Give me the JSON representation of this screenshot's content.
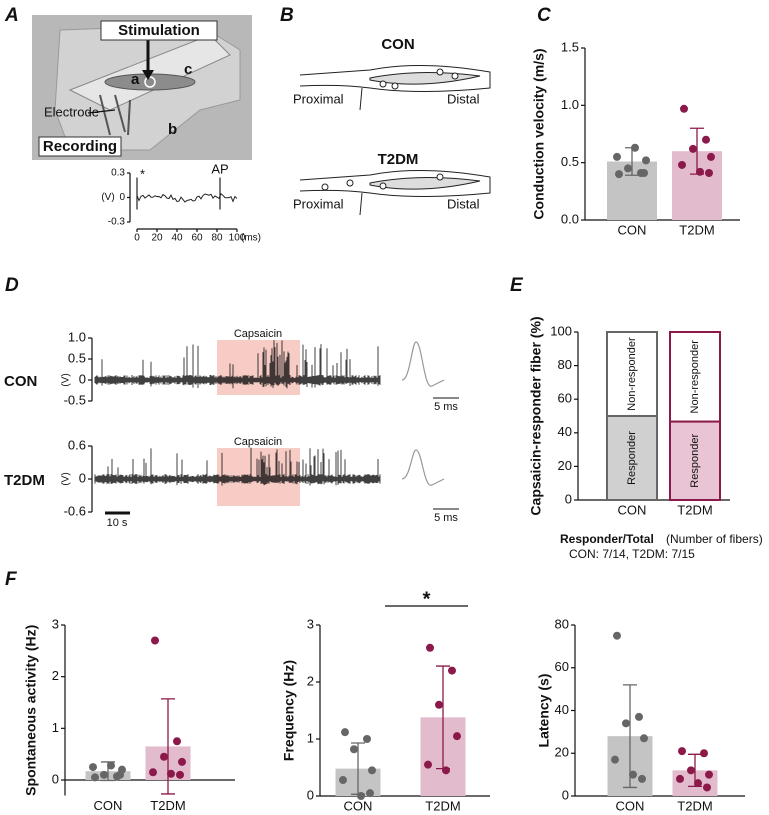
{
  "panel_a": {
    "stimulation": "Stimulation",
    "recording": "Recording",
    "electrode": "Electrode",
    "site_a": "a",
    "site_b": "b",
    "site_c": "c"
  },
  "panel_b": {
    "letter": "B",
    "con": "CON",
    "t2dm": "T2DM",
    "proximal": "Proximal",
    "distal": "Distal"
  },
  "chart_data": [
    {
      "type": "trace",
      "panel": "A",
      "ylabel": "(V)",
      "xlabel": "(ms)",
      "xlim": [
        0,
        100
      ],
      "ylim": [
        -0.3,
        0.3
      ],
      "xticks": [
        0,
        20,
        40,
        60,
        80,
        100
      ],
      "yticks": [
        0.3,
        0,
        -0.3
      ],
      "annotations": [
        {
          "text": "*",
          "x": 0
        },
        {
          "text": "AP",
          "x": 83
        }
      ]
    },
    {
      "type": "bar",
      "panel": "C",
      "ylabel": "Conduction velocity (m/s)",
      "categories": [
        "CON",
        "T2DM"
      ],
      "values": [
        0.51,
        0.6
      ],
      "errors": [
        0.12,
        0.2
      ],
      "points": [
        [
          0.4,
          0.41,
          0.45,
          0.52,
          0.55,
          0.63,
          0.41
        ],
        [
          0.97,
          0.7,
          0.62,
          0.55,
          0.48,
          0.42,
          0.41
        ]
      ],
      "bar_colors": [
        "#c4c4c4",
        "#e2bccd"
      ],
      "point_colors": [
        "#666666",
        "#8b1a4a"
      ],
      "ylim": [
        0,
        1.5
      ],
      "yticks": [
        {
          "value": 0,
          "label": "0.0"
        },
        0.5,
        {
          "value": 1,
          "label": "1.0"
        },
        1.5
      ]
    },
    {
      "type": "recording",
      "panel": "D",
      "label": "CON",
      "ylabel": "(V)",
      "stimulus": "Capsaicin",
      "scale_label": "5 ms",
      "ylim": [
        -0.5,
        1
      ],
      "yticks": [
        {
          "value": 1,
          "label": "1.0"
        },
        0.5,
        0,
        -0.5
      ]
    },
    {
      "type": "recording",
      "label": "T2DM",
      "ylabel": "(V)",
      "stimulus": "Capsaicin",
      "scale_label": "5 ms",
      "time_scale_label": "10 s",
      "ylim": [
        -0.6,
        0.6
      ],
      "yticks": [
        0.6,
        0,
        -0.6
      ]
    },
    {
      "type": "stacked_bar",
      "panel": "E",
      "ylabel": "Capsaicin-responder fiber (%)",
      "categories": [
        "CON",
        "T2DM"
      ],
      "series": [
        {
          "name": "Responder",
          "values": [
            50,
            46.7
          ],
          "colors": [
            "#d0d0d0",
            "#e8c4d4"
          ]
        },
        {
          "name": "Non-responder",
          "values": [
            50,
            53.3
          ],
          "colors": [
            "#ffffff",
            "#ffffff"
          ]
        }
      ],
      "edge_colors": [
        "#666666",
        "#8b1a4a"
      ],
      "ylim": [
        0,
        100
      ],
      "yticks": [
        0,
        20,
        40,
        60,
        80,
        100
      ],
      "note_title": "Responder/Total",
      "note_unit": "(Number of fibers)",
      "note": "CON: 7/14, T2DM: 7/15"
    },
    {
      "type": "bar",
      "panel": "F",
      "ylabel": "Spontaneous activity (Hz)",
      "categories": [
        "CON",
        "T2DM"
      ],
      "values": [
        0.17,
        0.65
      ],
      "errors": [
        0.18,
        0.92
      ],
      "points": [
        [
          0.05,
          0.07,
          0.1,
          0.2,
          0.25,
          0.28,
          0.1
        ],
        [
          2.7,
          0.75,
          0.45,
          0.35,
          0.15,
          0.12,
          0.1
        ]
      ],
      "bar_colors": [
        "#c4c4c4",
        "#e2bccd"
      ],
      "point_colors": [
        "#666666",
        "#8b1a4a"
      ],
      "ylim": [
        -0.3,
        3
      ],
      "yticks": [
        0,
        1,
        2,
        3
      ]
    },
    {
      "type": "bar",
      "ylabel": "Frequency (Hz)",
      "categories": [
        "CON",
        "T2DM"
      ],
      "values": [
        0.48,
        1.38
      ],
      "errors": [
        0.45,
        0.9
      ],
      "points": [
        [
          1.12,
          1.0,
          0.82,
          0.45,
          0.28,
          0.0,
          0.05
        ],
        [
          2.6,
          2.2,
          1.6,
          1.05,
          0.55,
          0.45
        ]
      ],
      "bar_colors": [
        "#c4c4c4",
        "#e2bccd"
      ],
      "point_colors": [
        "#666666",
        "#8b1a4a"
      ],
      "ylim": [
        0,
        3
      ],
      "yticks": [
        0,
        1,
        2,
        3
      ],
      "significance": "*"
    },
    {
      "type": "bar",
      "ylabel": "Latency (s)",
      "categories": [
        "CON",
        "T2DM"
      ],
      "values": [
        28,
        12
      ],
      "errors": [
        24,
        7.5
      ],
      "points": [
        [
          75,
          37,
          34,
          27,
          17,
          10,
          8
        ],
        [
          21,
          20,
          12,
          10,
          8,
          6,
          4
        ]
      ],
      "bar_colors": [
        "#c4c4c4",
        "#e2bccd"
      ],
      "point_colors": [
        "#666666",
        "#8b1a4a"
      ],
      "ylim": [
        0,
        80
      ],
      "yticks": [
        0,
        20,
        40,
        60,
        80
      ]
    }
  ]
}
